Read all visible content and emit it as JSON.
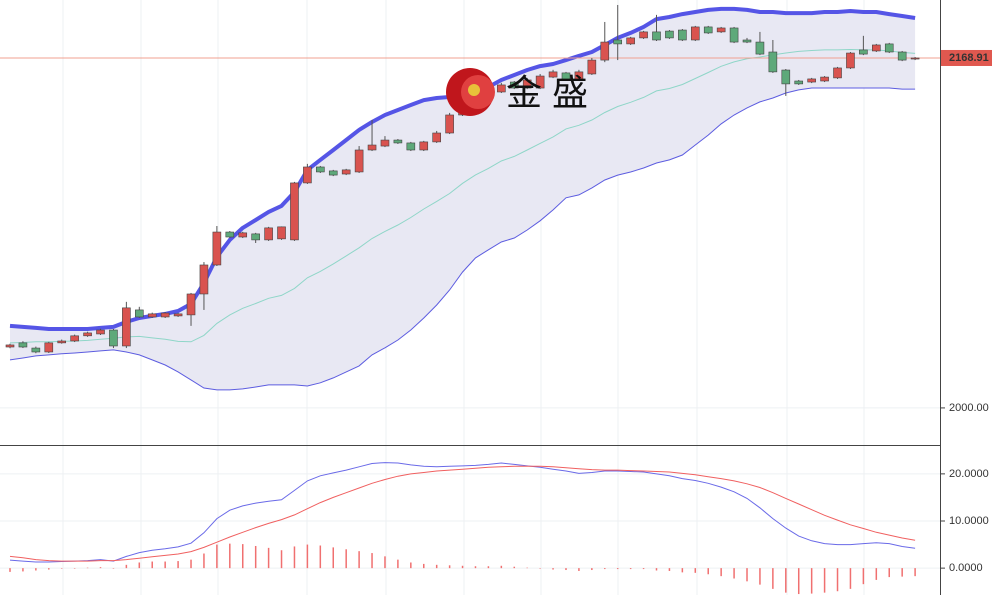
{
  "chart_data": [
    {
      "type": "candlestick",
      "watermark": "金盛",
      "last_price": 2168.91,
      "ylim": [
        1982.1,
        2196.9
      ],
      "yticks": [
        {
          "value": 2000,
          "label": "2000.00"
        }
      ],
      "up_color": "#d9534f",
      "down_color": "#5ea97a",
      "ohlc": [
        [
          2029.4,
          2031.0,
          2028.8,
          2030.4
        ],
        [
          2031.4,
          2032.2,
          2028.9,
          2029.4
        ],
        [
          2028.9,
          2029.6,
          2026.4,
          2027.0
        ],
        [
          2027.0,
          2031.9,
          2026.5,
          2031.4
        ],
        [
          2031.4,
          2033.0,
          2031.0,
          2032.3
        ],
        [
          2032.3,
          2035.4,
          2031.8,
          2034.8
        ],
        [
          2034.8,
          2036.8,
          2034.3,
          2036.2
        ],
        [
          2035.7,
          2038.2,
          2035.2,
          2037.6
        ],
        [
          2037.6,
          2038.1,
          2028.9,
          2029.9
        ],
        [
          2029.9,
          2051.2,
          2028.9,
          2048.3
        ],
        [
          2047.3,
          2048.8,
          2043.4,
          2043.9
        ],
        [
          2043.9,
          2046.0,
          2043.4,
          2045.4
        ],
        [
          2043.9,
          2046.3,
          2043.4,
          2045.8
        ],
        [
          2044.4,
          2045.9,
          2043.9,
          2045.4
        ],
        [
          2044.9,
          2055.5,
          2039.6,
          2055.0
        ],
        [
          2055.0,
          2070.4,
          2047.3,
          2069.0
        ],
        [
          2069.0,
          2087.8,
          2068.5,
          2084.9
        ],
        [
          2084.9,
          2085.4,
          2082.0,
          2082.5
        ],
        [
          2082.5,
          2085.0,
          2082.0,
          2084.5
        ],
        [
          2084.0,
          2084.5,
          2079.6,
          2081.1
        ],
        [
          2081.1,
          2087.4,
          2080.6,
          2086.9
        ],
        [
          2081.6,
          2087.6,
          2081.1,
          2087.4
        ],
        [
          2081.1,
          2109.1,
          2080.6,
          2108.6
        ],
        [
          2108.6,
          2117.8,
          2108.1,
          2116.3
        ],
        [
          2116.3,
          2116.8,
          2113.4,
          2113.9
        ],
        [
          2114.4,
          2114.9,
          2111.9,
          2112.4
        ],
        [
          2112.9,
          2115.4,
          2112.4,
          2114.9
        ],
        [
          2113.9,
          2126.4,
          2113.4,
          2124.5
        ],
        [
          2124.5,
          2139.0,
          2124.0,
          2126.9
        ],
        [
          2126.4,
          2131.2,
          2125.9,
          2129.3
        ],
        [
          2129.3,
          2129.8,
          2127.4,
          2127.9
        ],
        [
          2127.9,
          2128.4,
          2124.0,
          2124.5
        ],
        [
          2124.5,
          2128.9,
          2124.0,
          2128.4
        ],
        [
          2128.4,
          2133.7,
          2127.9,
          2132.7
        ],
        [
          2132.7,
          2142.4,
          2132.2,
          2141.4
        ],
        [
          2141.4,
          2149.6,
          2140.9,
          2148.6
        ],
        [
          2147.7,
          2152.1,
          2147.2,
          2151.1
        ],
        [
          2148.6,
          2154.5,
          2148.1,
          2153.5
        ],
        [
          2152.5,
          2156.9,
          2152.0,
          2155.9
        ],
        [
          2157.3,
          2157.8,
          2153.9,
          2154.4
        ],
        [
          2154.4,
          2159.3,
          2153.9,
          2158.3
        ],
        [
          2154.4,
          2161.2,
          2153.9,
          2160.2
        ],
        [
          2159.7,
          2163.2,
          2159.2,
          2162.2
        ],
        [
          2161.7,
          2162.2,
          2157.8,
          2158.3
        ],
        [
          2158.3,
          2163.2,
          2157.8,
          2162.2
        ],
        [
          2161.2,
          2168.9,
          2160.7,
          2167.9
        ],
        [
          2167.9,
          2186.3,
          2166.9,
          2176.6
        ],
        [
          2177.6,
          2194.5,
          2167.9,
          2175.7
        ],
        [
          2175.7,
          2179.1,
          2175.2,
          2178.6
        ],
        [
          2178.6,
          2182.0,
          2178.1,
          2181.5
        ],
        [
          2181.5,
          2189.7,
          2177.1,
          2177.6
        ],
        [
          2181.9,
          2182.4,
          2178.1,
          2178.6
        ],
        [
          2182.4,
          2182.9,
          2177.1,
          2177.6
        ],
        [
          2177.6,
          2184.4,
          2177.1,
          2183.9
        ],
        [
          2183.9,
          2184.4,
          2180.5,
          2181.0
        ],
        [
          2181.5,
          2183.9,
          2181.0,
          2183.4
        ],
        [
          2183.4,
          2183.9,
          2176.1,
          2176.6
        ],
        [
          2177.6,
          2178.6,
          2176.1,
          2176.6
        ],
        [
          2176.6,
          2181.5,
          2170.3,
          2170.8
        ],
        [
          2171.8,
          2177.6,
          2161.7,
          2162.2
        ],
        [
          2163.1,
          2163.6,
          2150.6,
          2156.4
        ],
        [
          2157.8,
          2158.3,
          2155.9,
          2156.4
        ],
        [
          2157.3,
          2159.3,
          2156.8,
          2158.8
        ],
        [
          2157.8,
          2160.2,
          2157.3,
          2159.7
        ],
        [
          2159.3,
          2164.6,
          2158.8,
          2164.1
        ],
        [
          2164.1,
          2171.8,
          2163.6,
          2171.3
        ],
        [
          2172.8,
          2179.6,
          2170.3,
          2170.8
        ],
        [
          2172.3,
          2175.7,
          2171.8,
          2175.2
        ],
        [
          2175.7,
          2176.2,
          2171.3,
          2171.8
        ],
        [
          2171.8,
          2172.3,
          2167.4,
          2167.9
        ],
        [
          2168.4,
          2169.4,
          2167.9,
          2168.9
        ]
      ],
      "bands": {
        "upper_color": "#5555e6",
        "middle_color": "#8fd6c8",
        "lower_color": "#5c5ce0",
        "fill": "#e8e8f3",
        "upper": [
          2039.6,
          2039.1,
          2038.6,
          2038.1,
          2038.1,
          2038.1,
          2038.1,
          2038.6,
          2039.1,
          2041.5,
          2043.4,
          2044.4,
          2045.4,
          2046.8,
          2050.2,
          2060.3,
          2072.9,
          2081.1,
          2086.9,
          2090.7,
          2094.6,
          2097.5,
          2104.2,
          2114.9,
          2119.7,
          2124.5,
          2129.3,
          2134.2,
          2138.0,
          2141.4,
          2143.8,
          2146.2,
          2148.6,
          2149.6,
          2150.1,
          2151.1,
          2152.5,
          2154.9,
          2158.3,
          2160.7,
          2163.1,
          2165.0,
          2166.0,
          2167.9,
          2169.9,
          2171.8,
          2175.2,
          2178.6,
          2181.0,
          2183.9,
          2187.7,
          2188.7,
          2190.1,
          2191.1,
          2192.1,
          2192.6,
          2192.6,
          2192.1,
          2191.1,
          2191.1,
          2190.6,
          2190.6,
          2190.6,
          2191.1,
          2191.1,
          2191.6,
          2191.1,
          2191.1,
          2190.1,
          2189.2,
          2188.2
        ],
        "middle": [
          2031.4,
          2031.6,
          2031.9,
          2031.9,
          2032.1,
          2032.3,
          2032.6,
          2033.1,
          2033.6,
          2034.3,
          2034.5,
          2033.8,
          2033.1,
          2032.1,
          2031.9,
          2035.0,
          2040.8,
          2044.9,
          2048.1,
          2050.4,
          2052.9,
          2054.3,
          2057.7,
          2062.8,
          2065.9,
          2069.5,
          2073.4,
          2077.3,
          2081.8,
          2085.2,
          2088.3,
          2091.9,
          2096.0,
          2099.7,
          2103.5,
          2108.4,
          2112.5,
          2115.6,
          2119.2,
          2121.4,
          2124.5,
          2127.7,
          2130.8,
          2134.7,
          2136.4,
          2139.0,
          2142.6,
          2145.5,
          2147.5,
          2149.9,
          2153.0,
          2154.2,
          2156.1,
          2159.0,
          2161.9,
          2164.9,
          2167.0,
          2168.5,
          2169.4,
          2170.4,
          2171.3,
          2172.1,
          2172.5,
          2172.8,
          2172.8,
          2173.0,
          2172.8,
          2172.8,
          2172.3,
          2171.6,
          2171.1
        ],
        "lower": [
          2023.2,
          2024.1,
          2025.1,
          2025.6,
          2026.1,
          2026.5,
          2027.0,
          2027.5,
          2028.0,
          2027.0,
          2025.6,
          2023.2,
          2020.7,
          2017.4,
          2013.5,
          2009.6,
          2008.7,
          2008.7,
          2009.2,
          2010.1,
          2011.1,
          2011.1,
          2011.1,
          2010.6,
          2012.1,
          2014.5,
          2017.4,
          2020.3,
          2025.6,
          2029.0,
          2032.8,
          2037.6,
          2043.4,
          2049.7,
          2056.9,
          2065.6,
          2072.4,
          2076.3,
          2080.1,
          2082.0,
          2085.9,
          2090.3,
          2095.6,
          2101.4,
          2102.8,
          2106.2,
          2110.0,
          2112.4,
          2113.9,
          2115.8,
          2118.2,
          2119.7,
          2122.1,
          2126.9,
          2131.7,
          2137.1,
          2141.4,
          2144.8,
          2147.7,
          2149.6,
          2152.0,
          2153.5,
          2154.4,
          2154.4,
          2154.4,
          2154.4,
          2154.4,
          2154.4,
          2154.4,
          2153.9,
          2153.9
        ]
      }
    },
    {
      "type": "macd",
      "ylim": [
        -5.7,
        25.7
      ],
      "yticks": [
        {
          "value": 0,
          "label": "0.0000"
        },
        {
          "value": 10,
          "label": "10.0000"
        },
        {
          "value": 20,
          "label": "20.0000"
        }
      ],
      "dif_color": "#6a6ae8",
      "dea_color": "#f06060",
      "hist_color": "#f07070",
      "dif": [
        1.7,
        1.5,
        1.3,
        1.3,
        1.4,
        1.5,
        1.6,
        1.8,
        1.5,
        2.5,
        3.3,
        3.8,
        4.1,
        4.5,
        5.3,
        7.5,
        10.5,
        12.3,
        13.2,
        13.8,
        14.2,
        14.5,
        16.5,
        18.5,
        19.6,
        20.2,
        20.8,
        21.5,
        22.2,
        22.4,
        22.3,
        21.9,
        21.6,
        21.5,
        21.6,
        21.7,
        21.8,
        22.0,
        22.3,
        22.0,
        21.7,
        21.4,
        21.0,
        20.6,
        20.1,
        20.3,
        20.6,
        20.6,
        20.5,
        20.4,
        20.0,
        19.6,
        19.0,
        18.6,
        18.0,
        17.2,
        16.2,
        14.8,
        12.8,
        10.5,
        8.5,
        6.8,
        5.8,
        5.2,
        5.0,
        5.0,
        5.2,
        5.4,
        5.2,
        4.6,
        4.2
      ],
      "dea": [
        2.5,
        2.2,
        1.8,
        1.6,
        1.5,
        1.5,
        1.5,
        1.6,
        1.6,
        1.8,
        2.1,
        2.4,
        2.7,
        3.0,
        3.5,
        4.4,
        5.5,
        6.6,
        7.6,
        8.6,
        9.5,
        10.3,
        11.3,
        12.6,
        13.9,
        15.0,
        16.0,
        17.0,
        18.0,
        18.8,
        19.5,
        20.0,
        20.3,
        20.6,
        20.8,
        21.0,
        21.2,
        21.4,
        21.5,
        21.6,
        21.6,
        21.6,
        21.5,
        21.3,
        21.1,
        20.9,
        20.8,
        20.8,
        20.7,
        20.6,
        20.5,
        20.4,
        20.1,
        19.8,
        19.4,
        19.0,
        18.5,
        17.9,
        17.1,
        16.0,
        14.8,
        13.6,
        12.4,
        11.2,
        10.2,
        9.2,
        8.4,
        7.6,
        7.0,
        6.4,
        5.9
      ],
      "histogram": [
        -0.8,
        -0.7,
        -0.5,
        -0.3,
        -0.1,
        0,
        0.1,
        0.2,
        -0.1,
        0.7,
        1.2,
        1.4,
        1.4,
        1.5,
        1.8,
        3.1,
        5.0,
        5.2,
        5.1,
        4.7,
        4.3,
        3.8,
        4.6,
        5.0,
        4.8,
        4.4,
        4.0,
        3.6,
        3.2,
        2.5,
        1.8,
        1.2,
        0.9,
        0.7,
        0.6,
        0.5,
        0.4,
        0.4,
        0.5,
        0.3,
        0.1,
        -0.1,
        -0.3,
        -0.4,
        -0.6,
        -0.4,
        -0.2,
        -0.2,
        -0.2,
        -0.2,
        -0.5,
        -0.6,
        -0.9,
        -1.0,
        -1.3,
        -1.7,
        -2.2,
        -2.8,
        -3.5,
        -4.4,
        -5.2,
        -5.5,
        -5.4,
        -5.2,
        -4.9,
        -4.4,
        -3.4,
        -2.5,
        -1.9,
        -1.8,
        -1.7
      ]
    }
  ]
}
